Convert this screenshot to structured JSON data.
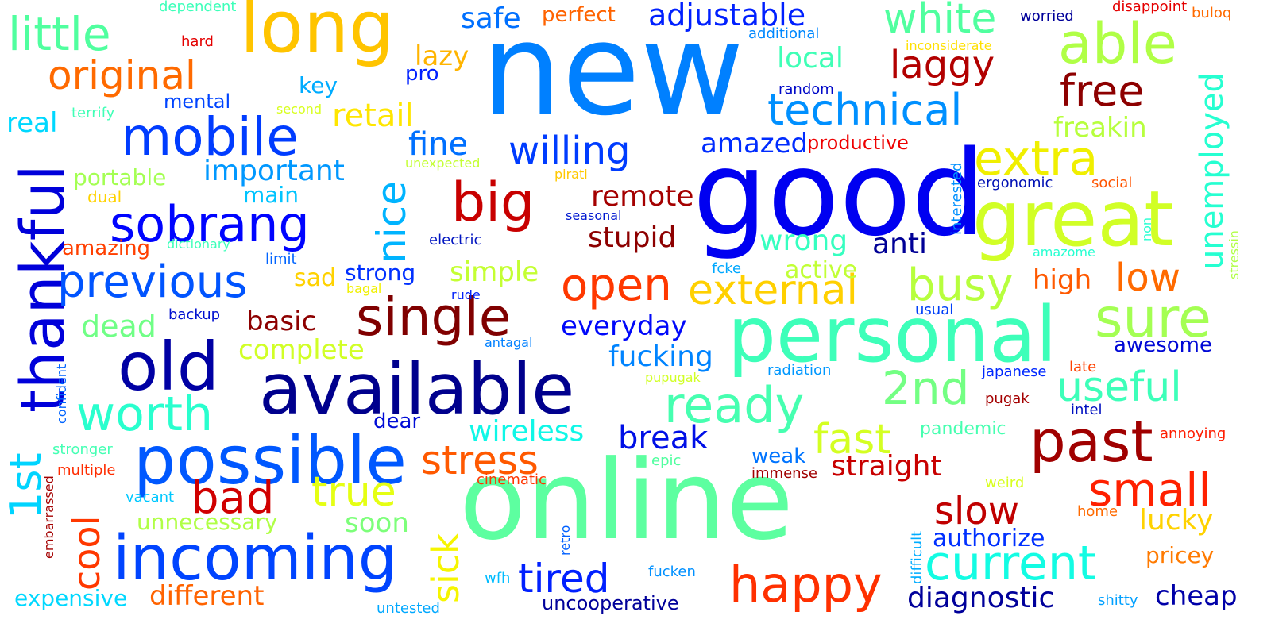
{
  "words": [
    {
      "text": "new",
      "color": "#0080ff"
    },
    {
      "text": "good",
      "color": "#0000f1"
    },
    {
      "text": "online",
      "color": "#5dffa0"
    },
    {
      "text": "personal",
      "color": "#3dffb9"
    },
    {
      "text": "available",
      "color": "#00008d"
    },
    {
      "text": "great",
      "color": "#d1ff26"
    },
    {
      "text": "long",
      "color": "#ffc400"
    },
    {
      "text": "possible",
      "color": "#0058ff"
    },
    {
      "text": "thankful",
      "color": "#0000da"
    },
    {
      "text": "incoming",
      "color": "#0044ff"
    },
    {
      "text": "old",
      "color": "#0000a4"
    },
    {
      "text": "past",
      "color": "#a00000"
    },
    {
      "text": "mobile",
      "color": "#003cff"
    },
    {
      "text": "single",
      "color": "#800000"
    },
    {
      "text": "sure",
      "color": "#a4ff53"
    },
    {
      "text": "able",
      "color": "#b0ff46"
    },
    {
      "text": "big",
      "color": "#c80000"
    },
    {
      "text": "current",
      "color": "#13fce3"
    },
    {
      "text": "ready",
      "color": "#46ffb0"
    },
    {
      "text": "worth",
      "color": "#29ffce"
    },
    {
      "text": "previous",
      "color": "#0054ff"
    },
    {
      "text": "sobrang",
      "color": "#0004ff"
    },
    {
      "text": "happy",
      "color": "#ff3000"
    },
    {
      "text": "technical",
      "color": "#0090ff"
    },
    {
      "text": "2nd",
      "color": "#73ff83"
    },
    {
      "text": "external",
      "color": "#ffd000"
    },
    {
      "text": "original",
      "color": "#ff6a00"
    },
    {
      "text": "nice",
      "color": "#00b4ff"
    },
    {
      "text": "open",
      "color": "#ff3800"
    },
    {
      "text": "little",
      "color": "#50ff9f"
    },
    {
      "text": "stress",
      "color": "#ff5900"
    },
    {
      "text": "small",
      "color": "#ff2000"
    },
    {
      "text": "extra",
      "color": "#f0ef00"
    },
    {
      "text": "busy",
      "color": "#b7ff3d"
    },
    {
      "text": "useful",
      "color": "#3dffb9"
    },
    {
      "text": "free",
      "color": "#8d0000"
    },
    {
      "text": "fast",
      "color": "#d4ff23"
    },
    {
      "text": "1st",
      "color": "#00d4ff"
    },
    {
      "text": "white",
      "color": "#50ff9f"
    },
    {
      "text": "bad",
      "color": "#d00000"
    },
    {
      "text": "true",
      "color": "#e5ff13"
    },
    {
      "text": "willing",
      "color": "#003cff"
    },
    {
      "text": "cool",
      "color": "#ff3800"
    },
    {
      "text": "tired",
      "color": "#0020ff"
    },
    {
      "text": "laggy",
      "color": "#b20000"
    },
    {
      "text": "sick",
      "color": "#f6f500"
    },
    {
      "text": "slow",
      "color": "#c00000"
    },
    {
      "text": "low",
      "color": "#ff6a00"
    },
    {
      "text": "unemployed",
      "color": "#26ffd1"
    },
    {
      "text": "different",
      "color": "#ff6300"
    },
    {
      "text": "diagnostic",
      "color": "#00009a"
    },
    {
      "text": "adjustable",
      "color": "#0020ff"
    },
    {
      "text": "straight",
      "color": "#c80000"
    },
    {
      "text": "lucky",
      "color": "#ffd200"
    },
    {
      "text": "break",
      "color": "#0010e6"
    },
    {
      "text": "important",
      "color": "#0098ff"
    },
    {
      "text": "wireless",
      "color": "#0ff7e7"
    },
    {
      "text": "fine",
      "color": "#0070ff"
    },
    {
      "text": "remote",
      "color": "#a40000"
    },
    {
      "text": "stupid",
      "color": "#8d0000"
    },
    {
      "text": "wrong",
      "color": "#36ffc0"
    },
    {
      "text": "retail",
      "color": "#ffe600"
    },
    {
      "text": "local",
      "color": "#40ffb6"
    },
    {
      "text": "everyday",
      "color": "#0008fa"
    },
    {
      "text": "fucking",
      "color": "#0084ff"
    },
    {
      "text": "amazed",
      "color": "#002cff"
    },
    {
      "text": "dead",
      "color": "#70ff86"
    },
    {
      "text": "basic",
      "color": "#8d0000"
    },
    {
      "text": "complete",
      "color": "#d1ff26"
    },
    {
      "text": "high",
      "color": "#ff5900"
    },
    {
      "text": "anti",
      "color": "#000096"
    },
    {
      "text": "freakin",
      "color": "#b7ff3d"
    },
    {
      "text": "authorize",
      "color": "#0030ff"
    },
    {
      "text": "awesome",
      "color": "#0008d6"
    },
    {
      "text": "cheap",
      "color": "#0000a8"
    },
    {
      "text": "safe",
      "color": "#0070ff"
    },
    {
      "text": "simple",
      "color": "#c4ff33"
    },
    {
      "text": "active",
      "color": "#c1ff36"
    },
    {
      "text": "soon",
      "color": "#7dff7a"
    },
    {
      "text": "unnecessary",
      "color": "#b0ff46"
    },
    {
      "text": "expensive",
      "color": "#00d8ff"
    },
    {
      "text": "pricey",
      "color": "#ff7a00"
    },
    {
      "text": "uncooperative",
      "color": "#00009a"
    },
    {
      "text": "strong",
      "color": "#0030ff"
    },
    {
      "text": "sad",
      "color": "#ffd200"
    },
    {
      "text": "productive",
      "color": "#ee0000"
    },
    {
      "text": "main",
      "color": "#00c4ff"
    },
    {
      "text": "portable",
      "color": "#a4ff53"
    },
    {
      "text": "lazy",
      "color": "#ffb400"
    },
    {
      "text": "real",
      "color": "#00d8ff"
    },
    {
      "text": "perfect",
      "color": "#ff6300"
    },
    {
      "text": "key",
      "color": "#00acff"
    },
    {
      "text": "pro",
      "color": "#0020ff"
    },
    {
      "text": "mental",
      "color": "#0044ff"
    },
    {
      "text": "amazing",
      "color": "#ff3f00"
    },
    {
      "text": "weak",
      "color": "#0074ff"
    },
    {
      "text": "dear",
      "color": "#000cd6"
    },
    {
      "text": "pandemic",
      "color": "#46ffb0"
    },
    {
      "text": "annoying",
      "color": "#ff1c00"
    },
    {
      "text": "embarrassed",
      "color": "#a40000"
    },
    {
      "text": "multiple",
      "color": "#ff2c00"
    },
    {
      "text": "confident",
      "color": "#0064ff"
    },
    {
      "text": "stronger",
      "color": "#43ffb3"
    },
    {
      "text": "vacant",
      "color": "#00c8ff"
    },
    {
      "text": "untested",
      "color": "#00a8ff"
    },
    {
      "text": "wfh",
      "color": "#00bcff"
    },
    {
      "text": "retro",
      "color": "#0060ff"
    },
    {
      "text": "fucken",
      "color": "#0090ff"
    },
    {
      "text": "shitty",
      "color": "#00a0ff"
    },
    {
      "text": "home",
      "color": "#ff6a00"
    },
    {
      "text": "difficult",
      "color": "#00acff"
    },
    {
      "text": "weird",
      "color": "#d8ff20"
    },
    {
      "text": "epic",
      "color": "#50ff9f"
    },
    {
      "text": "immense",
      "color": "#a00000"
    },
    {
      "text": "cinematic",
      "color": "#ff3400"
    },
    {
      "text": "intel",
      "color": "#0010c0"
    },
    {
      "text": "pugak",
      "color": "#a40000"
    },
    {
      "text": "late",
      "color": "#ff4100"
    },
    {
      "text": "japanese",
      "color": "#0028ff"
    },
    {
      "text": "radiation",
      "color": "#0098ff"
    },
    {
      "text": "pupugak",
      "color": "#d1ff26"
    },
    {
      "text": "antagal",
      "color": "#0080ff"
    },
    {
      "text": "usual",
      "color": "#0040f8"
    },
    {
      "text": "rude",
      "color": "#0020f8"
    },
    {
      "text": "bagal",
      "color": "#f0f000"
    },
    {
      "text": "backup",
      "color": "#0010d0"
    },
    {
      "text": "fcke",
      "color": "#00a8ff"
    },
    {
      "text": "limit",
      "color": "#0064ff"
    },
    {
      "text": "dictionary",
      "color": "#3dffb9"
    },
    {
      "text": "electric",
      "color": "#0014c0"
    },
    {
      "text": "seasonal",
      "color": "#0018d0"
    },
    {
      "text": "dual",
      "color": "#ffd200"
    },
    {
      "text": "pirati",
      "color": "#ffc800"
    },
    {
      "text": "unexpected",
      "color": "#c4ff33"
    },
    {
      "text": "ergonomic",
      "color": "#0010b4"
    },
    {
      "text": "social",
      "color": "#ff5400"
    },
    {
      "text": "non",
      "color": "#26ffd1"
    },
    {
      "text": "stressin",
      "color": "#b0ff46"
    },
    {
      "text": "amazome",
      "color": "#26ffd1"
    },
    {
      "text": "interested",
      "color": "#0090ff"
    },
    {
      "text": "random",
      "color": "#0008c8"
    },
    {
      "text": "additional",
      "color": "#0088ff"
    },
    {
      "text": "inconsiderate",
      "color": "#ffe000"
    },
    {
      "text": "worried",
      "color": "#00009a"
    },
    {
      "text": "disappoint",
      "color": "#e40000"
    },
    {
      "text": "buloq",
      "color": "#ff6a00"
    },
    {
      "text": "second",
      "color": "#d8ff20"
    },
    {
      "text": "terrify",
      "color": "#40ffb6"
    },
    {
      "text": "dependent",
      "color": "#3dffb9"
    },
    {
      "text": "hard",
      "color": "#e40000"
    }
  ]
}
